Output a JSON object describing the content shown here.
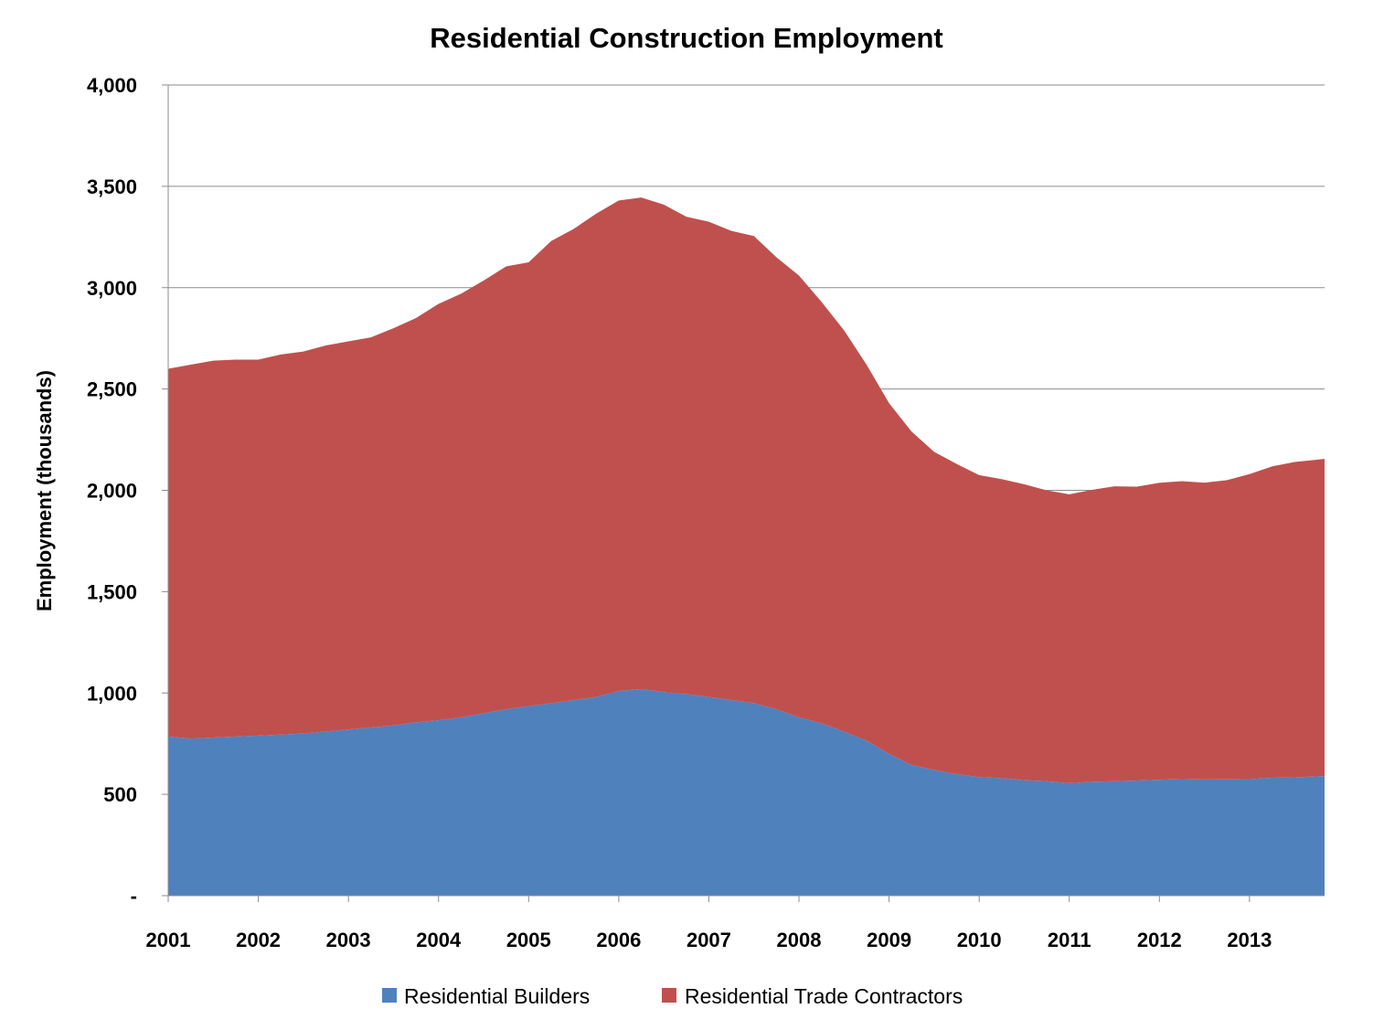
{
  "chart_data": {
    "type": "area",
    "stacked": true,
    "title": "Residential Construction Employment",
    "xlabel": "",
    "ylabel": "Employment (thousands)",
    "xlim": [
      2001,
      2013.833
    ],
    "ylim": [
      0,
      4000
    ],
    "yticks": [
      0,
      500,
      1000,
      1500,
      2000,
      2500,
      3000,
      3500,
      4000
    ],
    "ytick_labels": [
      "-",
      "500",
      "1,000",
      "1,500",
      "2,000",
      "2,500",
      "3,000",
      "3,500",
      "4,000"
    ],
    "xticks": [
      2001,
      2002,
      2003,
      2004,
      2005,
      2006,
      2007,
      2008,
      2009,
      2010,
      2011,
      2012,
      2013
    ],
    "xtick_labels": [
      "2001",
      "2002",
      "2003",
      "2004",
      "2005",
      "2006",
      "2007",
      "2008",
      "2009",
      "2010",
      "2011",
      "2012",
      "2013"
    ],
    "grid": "horizontal",
    "legend": "bottom",
    "x": [
      2001.0,
      2001.25,
      2001.5,
      2001.75,
      2002.0,
      2002.25,
      2002.5,
      2002.75,
      2003.0,
      2003.25,
      2003.5,
      2003.75,
      2004.0,
      2004.25,
      2004.5,
      2004.75,
      2005.0,
      2005.25,
      2005.5,
      2005.75,
      2006.0,
      2006.25,
      2006.5,
      2006.75,
      2007.0,
      2007.25,
      2007.5,
      2007.75,
      2008.0,
      2008.25,
      2008.5,
      2008.75,
      2009.0,
      2009.25,
      2009.5,
      2009.75,
      2010.0,
      2010.25,
      2010.5,
      2010.75,
      2011.0,
      2011.25,
      2011.5,
      2011.75,
      2012.0,
      2012.25,
      2012.5,
      2012.75,
      2013.0,
      2013.25,
      2013.5,
      2013.833
    ],
    "series": [
      {
        "name": "Residential Builders",
        "color": "#4f81bd",
        "values": [
          785,
          775,
          780,
          785,
          790,
          795,
          800,
          810,
          820,
          830,
          840,
          855,
          865,
          880,
          900,
          920,
          935,
          950,
          965,
          980,
          1010,
          1020,
          1005,
          995,
          980,
          965,
          950,
          920,
          880,
          850,
          810,
          765,
          700,
          645,
          620,
          600,
          585,
          580,
          570,
          565,
          555,
          562,
          565,
          568,
          572,
          575,
          573,
          574,
          575,
          582,
          584,
          590
        ]
      },
      {
        "name": "Residential Trade Contractors",
        "color": "#c0504d",
        "values": [
          1815,
          1845,
          1860,
          1860,
          1855,
          1875,
          1885,
          1905,
          1915,
          1925,
          1960,
          1995,
          2055,
          2090,
          2135,
          2185,
          2190,
          2280,
          2325,
          2385,
          2420,
          2425,
          2405,
          2355,
          2345,
          2315,
          2305,
          2230,
          2180,
          2080,
          1980,
          1855,
          1730,
          1645,
          1570,
          1530,
          1490,
          1475,
          1460,
          1435,
          1425,
          1440,
          1455,
          1450,
          1465,
          1470,
          1465,
          1476,
          1505,
          1536,
          1556,
          1565
        ]
      }
    ]
  }
}
